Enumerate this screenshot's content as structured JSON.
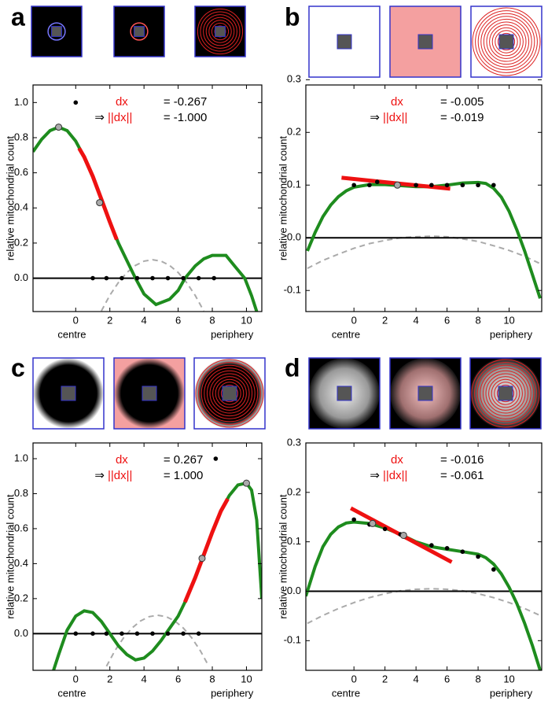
{
  "chart_data": [
    {
      "type": "line",
      "panel": "a",
      "ylabel": "relative mitochondrial count",
      "xlabel_left": "centre",
      "xlabel_right": "periphery",
      "annotations": [
        {
          "label": "dx",
          "text": "= -0.267"
        },
        {
          "prefix": "⇒",
          "label": "||dx||",
          "text": "= -1.000"
        }
      ],
      "xlim": [
        -2.5,
        10.9
      ],
      "ylim": [
        -0.19,
        1.1
      ],
      "xticks": [
        0,
        2,
        4,
        6,
        8,
        10
      ],
      "yticks": [
        {
          "value": 0,
          "label": "0.0"
        },
        0.2,
        0.4,
        0.6,
        0.8,
        {
          "value": 1,
          "label": "1.0"
        }
      ],
      "hline": 0,
      "series": [
        {
          "style": "dashed",
          "color": "#aaaaaa",
          "x": [
            1.5,
            2,
            2.5,
            3,
            3.5,
            4,
            4.5,
            5,
            5.5,
            6,
            6.5,
            7,
            7.5
          ],
          "values": [
            -0.187,
            -0.0975,
            -0.0246,
            0.032,
            0.0726,
            0.097,
            0.105,
            0.097,
            0.0726,
            0.032,
            -0.025,
            -0.098,
            -0.187
          ]
        },
        {
          "style": "line",
          "color": "#1e8c1e",
          "x": [
            -2.5,
            -2,
            -1.5,
            -1,
            -0.5,
            0,
            0.5,
            1,
            1.5,
            2,
            2.5,
            3,
            3.5,
            4,
            4.7,
            5.5,
            6,
            6.4,
            7,
            7.5,
            8,
            8.8,
            9.3,
            9.9,
            10.3,
            10.6
          ],
          "values": [
            0.72,
            0.79,
            0.84,
            0.86,
            0.84,
            0.78,
            0.69,
            0.58,
            0.45,
            0.32,
            0.2,
            0.1,
            0.0,
            -0.09,
            -0.15,
            -0.12,
            -0.07,
            0.0,
            0.07,
            0.11,
            0.13,
            0.13,
            0.07,
            0.0,
            -0.1,
            -0.19
          ]
        },
        {
          "style": "line",
          "color": "#ee1111",
          "x": [
            0.2,
            0.5,
            1,
            1.5,
            2,
            2.4
          ],
          "values": [
            0.74,
            0.69,
            0.58,
            0.45,
            0.32,
            0.22
          ]
        },
        {
          "style": "markers",
          "color": "#000000",
          "x": [
            0,
            1,
            1.8,
            2.7,
            3.6,
            4.5,
            5.4,
            6.3,
            7.2,
            8.1
          ],
          "values": [
            1.0,
            0,
            0,
            0,
            0,
            0,
            0,
            0,
            0,
            0
          ]
        },
        {
          "style": "open",
          "color": "#aaaaaa",
          "x": [
            -1,
            1.4
          ],
          "values": [
            0.86,
            0.43
          ]
        }
      ]
    },
    {
      "type": "line",
      "panel": "b",
      "ylabel": "relative mitochondrial count",
      "xlabel_left": "centre",
      "xlabel_right": "periphery",
      "annotations": [
        {
          "label": "dx",
          "text": "= -0.005"
        },
        {
          "prefix": "⇒",
          "label": "||dx||",
          "text": "= -0.019"
        }
      ],
      "xlim": [
        -3.1,
        12.1
      ],
      "ylim": [
        -0.14,
        0.29
      ],
      "xticks": [
        0,
        2,
        4,
        6,
        8,
        10
      ],
      "yticks": [
        -0.1,
        {
          "value": 0,
          "label": "0.0"
        },
        0.1,
        0.2,
        0.3
      ],
      "hline": 0,
      "series": [
        {
          "style": "dashed",
          "color": "#aaaaaa",
          "x": [
            -3,
            -2,
            -1,
            0,
            1,
            2,
            3,
            4,
            5,
            6,
            7,
            8,
            9,
            10,
            11,
            12
          ],
          "values": [
            -0.058,
            -0.043,
            -0.031,
            -0.02,
            -0.011,
            -0.005,
            0.0,
            0.002,
            0.003,
            0.002,
            -0.002,
            -0.007,
            -0.015,
            -0.024,
            -0.035,
            -0.049
          ]
        },
        {
          "style": "line",
          "color": "#1e8c1e",
          "x": [
            -3,
            -2.5,
            -2,
            -1.5,
            -1,
            -0.5,
            0,
            1,
            2,
            3,
            4,
            5,
            6,
            7,
            8,
            8.5,
            9,
            9.5,
            10,
            10.5,
            11,
            11.5,
            12
          ],
          "values": [
            -0.025,
            0.01,
            0.04,
            0.062,
            0.078,
            0.089,
            0.096,
            0.101,
            0.101,
            0.099,
            0.097,
            0.097,
            0.1,
            0.104,
            0.105,
            0.103,
            0.094,
            0.077,
            0.05,
            0.015,
            -0.025,
            -0.07,
            -0.115
          ]
        },
        {
          "style": "line",
          "color": "#ee1111",
          "x": [
            -0.8,
            6.2
          ],
          "values": [
            0.114,
            0.093
          ]
        },
        {
          "style": "markers",
          "color": "#000000",
          "x": [
            0,
            1,
            1.5,
            4,
            5,
            6,
            7,
            8,
            9
          ],
          "values": [
            0.1,
            0.1,
            0.106,
            0.1,
            0.1,
            0.1,
            0.1,
            0.1,
            0.1
          ]
        },
        {
          "style": "open",
          "color": "#aaaaaa",
          "x": [
            2.8
          ],
          "values": [
            0.1
          ]
        }
      ]
    },
    {
      "type": "line",
      "panel": "c",
      "ylabel": "relative mitochondrial count",
      "xlabel_left": "centre",
      "xlabel_right": "periphery",
      "annotations": [
        {
          "label": "dx",
          "text": "= 0.267"
        },
        {
          "prefix": "⇒",
          "label": "||dx||",
          "text": "= 1.000"
        }
      ],
      "xlim": [
        -2.5,
        10.9
      ],
      "ylim": [
        -0.21,
        1.09
      ],
      "xticks": [
        0,
        2,
        4,
        6,
        8,
        10
      ],
      "yticks": [
        {
          "value": 0,
          "label": "0.0"
        },
        0.2,
        0.4,
        0.6,
        0.8,
        {
          "value": 1,
          "label": "1.0"
        }
      ],
      "hline": 0,
      "series": [
        {
          "style": "dashed",
          "color": "#aaaaaa",
          "x": [
            1.8,
            2.3,
            2.8,
            3.3,
            3.8,
            4.3,
            4.8,
            5.3,
            5.8,
            6.3,
            6.8,
            7.3,
            7.8
          ],
          "values": [
            -0.187,
            -0.0975,
            -0.0246,
            0.032,
            0.0726,
            0.097,
            0.105,
            0.097,
            0.0726,
            0.032,
            -0.025,
            -0.098,
            -0.187
          ]
        },
        {
          "style": "line",
          "color": "#1e8c1e",
          "x": [
            -1.3,
            -1,
            -0.5,
            0,
            0.5,
            1,
            1.5,
            2,
            2.5,
            3,
            3.5,
            4,
            4.5,
            5,
            5.5,
            6,
            6.5,
            7,
            7.5,
            8,
            8.5,
            9,
            9.5,
            10,
            10.3,
            10.6,
            10.9
          ],
          "values": [
            -0.21,
            -0.12,
            0.02,
            0.1,
            0.13,
            0.12,
            0.07,
            0.0,
            -0.07,
            -0.12,
            -0.15,
            -0.14,
            -0.1,
            -0.04,
            0.03,
            0.1,
            0.2,
            0.32,
            0.45,
            0.58,
            0.7,
            0.79,
            0.85,
            0.86,
            0.82,
            0.65,
            0.2
          ]
        },
        {
          "style": "line",
          "color": "#ee1111",
          "x": [
            6.4,
            7,
            7.5,
            8,
            8.5,
            8.9
          ],
          "values": [
            0.18,
            0.32,
            0.45,
            0.58,
            0.7,
            0.77
          ]
        },
        {
          "style": "markers",
          "color": "#000000",
          "x": [
            0,
            1,
            1.8,
            2.7,
            3.6,
            4.5,
            5.4,
            6.3,
            7.2,
            8.2
          ],
          "values": [
            0,
            0,
            0,
            0,
            0,
            0,
            0,
            0,
            0,
            1.0
          ]
        },
        {
          "style": "open",
          "color": "#aaaaaa",
          "x": [
            10,
            7.4
          ],
          "values": [
            0.86,
            0.43
          ]
        }
      ]
    },
    {
      "type": "line",
      "panel": "d",
      "ylabel": "relative mitochondrial count",
      "xlabel_left": "centre",
      "xlabel_right": "periphery",
      "annotations": [
        {
          "label": "dx",
          "text": "= -0.016"
        },
        {
          "prefix": "⇒",
          "label": "||dx||",
          "text": "= -0.061"
        }
      ],
      "xlim": [
        -3.1,
        12.1
      ],
      "ylim": [
        -0.16,
        0.3
      ],
      "xticks": [
        0,
        2,
        4,
        6,
        8,
        10
      ],
      "yticks": [
        -0.1,
        {
          "value": 0,
          "label": "0.0"
        },
        0.1,
        0.2,
        0.3
      ],
      "hline": 0,
      "series": [
        {
          "style": "dashed",
          "color": "#aaaaaa",
          "x": [
            -3,
            -2,
            -1,
            0,
            1,
            2,
            3,
            4,
            5,
            6,
            7,
            8,
            9,
            10,
            11,
            12
          ],
          "values": [
            -0.065,
            -0.049,
            -0.035,
            -0.023,
            -0.013,
            -0.005,
            0.001,
            0.004,
            0.005,
            0.004,
            0.001,
            -0.005,
            -0.013,
            -0.023,
            -0.035,
            -0.049
          ]
        },
        {
          "style": "line",
          "color": "#1e8c1e",
          "x": [
            -3.1,
            -2.5,
            -2,
            -1.5,
            -1,
            -0.5,
            0,
            1,
            2,
            3,
            4,
            5,
            6,
            7,
            8,
            8.5,
            9,
            9.5,
            10,
            10.5,
            11,
            11.5,
            12
          ],
          "values": [
            -0.01,
            0.05,
            0.09,
            0.115,
            0.13,
            0.138,
            0.14,
            0.137,
            0.128,
            0.115,
            0.1,
            0.09,
            0.085,
            0.08,
            0.075,
            0.068,
            0.055,
            0.035,
            0.008,
            -0.025,
            -0.065,
            -0.11,
            -0.16
          ]
        },
        {
          "style": "line",
          "color": "#ee1111",
          "x": [
            -0.2,
            6.3
          ],
          "values": [
            0.168,
            0.059
          ]
        },
        {
          "style": "markers",
          "color": "#000000",
          "x": [
            0,
            1,
            2,
            3,
            5,
            6,
            7,
            8,
            9
          ],
          "values": [
            0.145,
            0.135,
            0.126,
            0.115,
            0.093,
            0.087,
            0.08,
            0.07,
            0.044
          ]
        },
        {
          "style": "open",
          "color": "#aaaaaa",
          "x": [
            1.2,
            3.2
          ],
          "values": [
            0.137,
            0.113
          ]
        }
      ]
    }
  ]
}
